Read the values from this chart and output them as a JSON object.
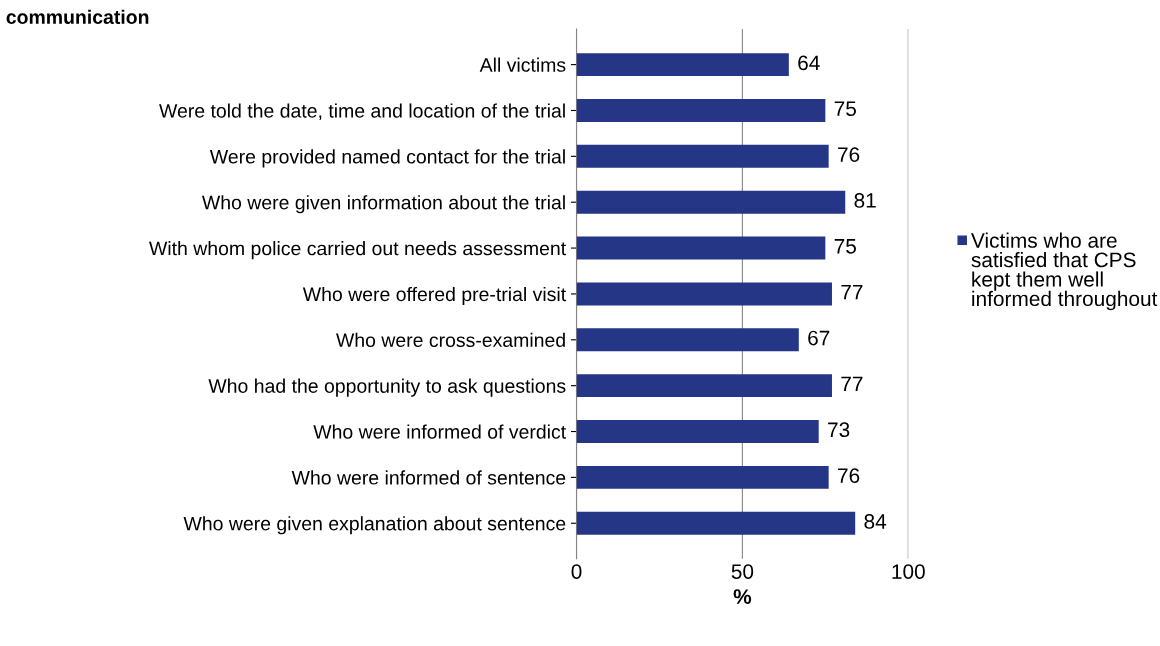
{
  "chart_data": {
    "type": "bar",
    "orientation": "horizontal",
    "title": "communication",
    "xlabel": "%",
    "categories": [
      "All victims",
      "Were told the date, time and location of the trial",
      "Were provided named contact for the trial",
      "Who were given information about the trial",
      "With whom police carried out needs assessment",
      "Who were offered pre-trial visit",
      "Who were cross-examined",
      "Who had the opportunity to ask questions",
      "Who were informed of verdict",
      "Who were informed of sentence",
      "Who were given explanation about sentence"
    ],
    "series": [
      {
        "name": "Victims who are satisfied that CPS kept them well informed throughout",
        "color": "#253686",
        "values": [
          64,
          75,
          76,
          81,
          75,
          77,
          67,
          77,
          73,
          76,
          84
        ]
      }
    ],
    "xlim": [
      0,
      100
    ],
    "xticks": [
      0,
      50,
      100
    ],
    "grid": "x",
    "legend": "right",
    "data_labels": true
  }
}
